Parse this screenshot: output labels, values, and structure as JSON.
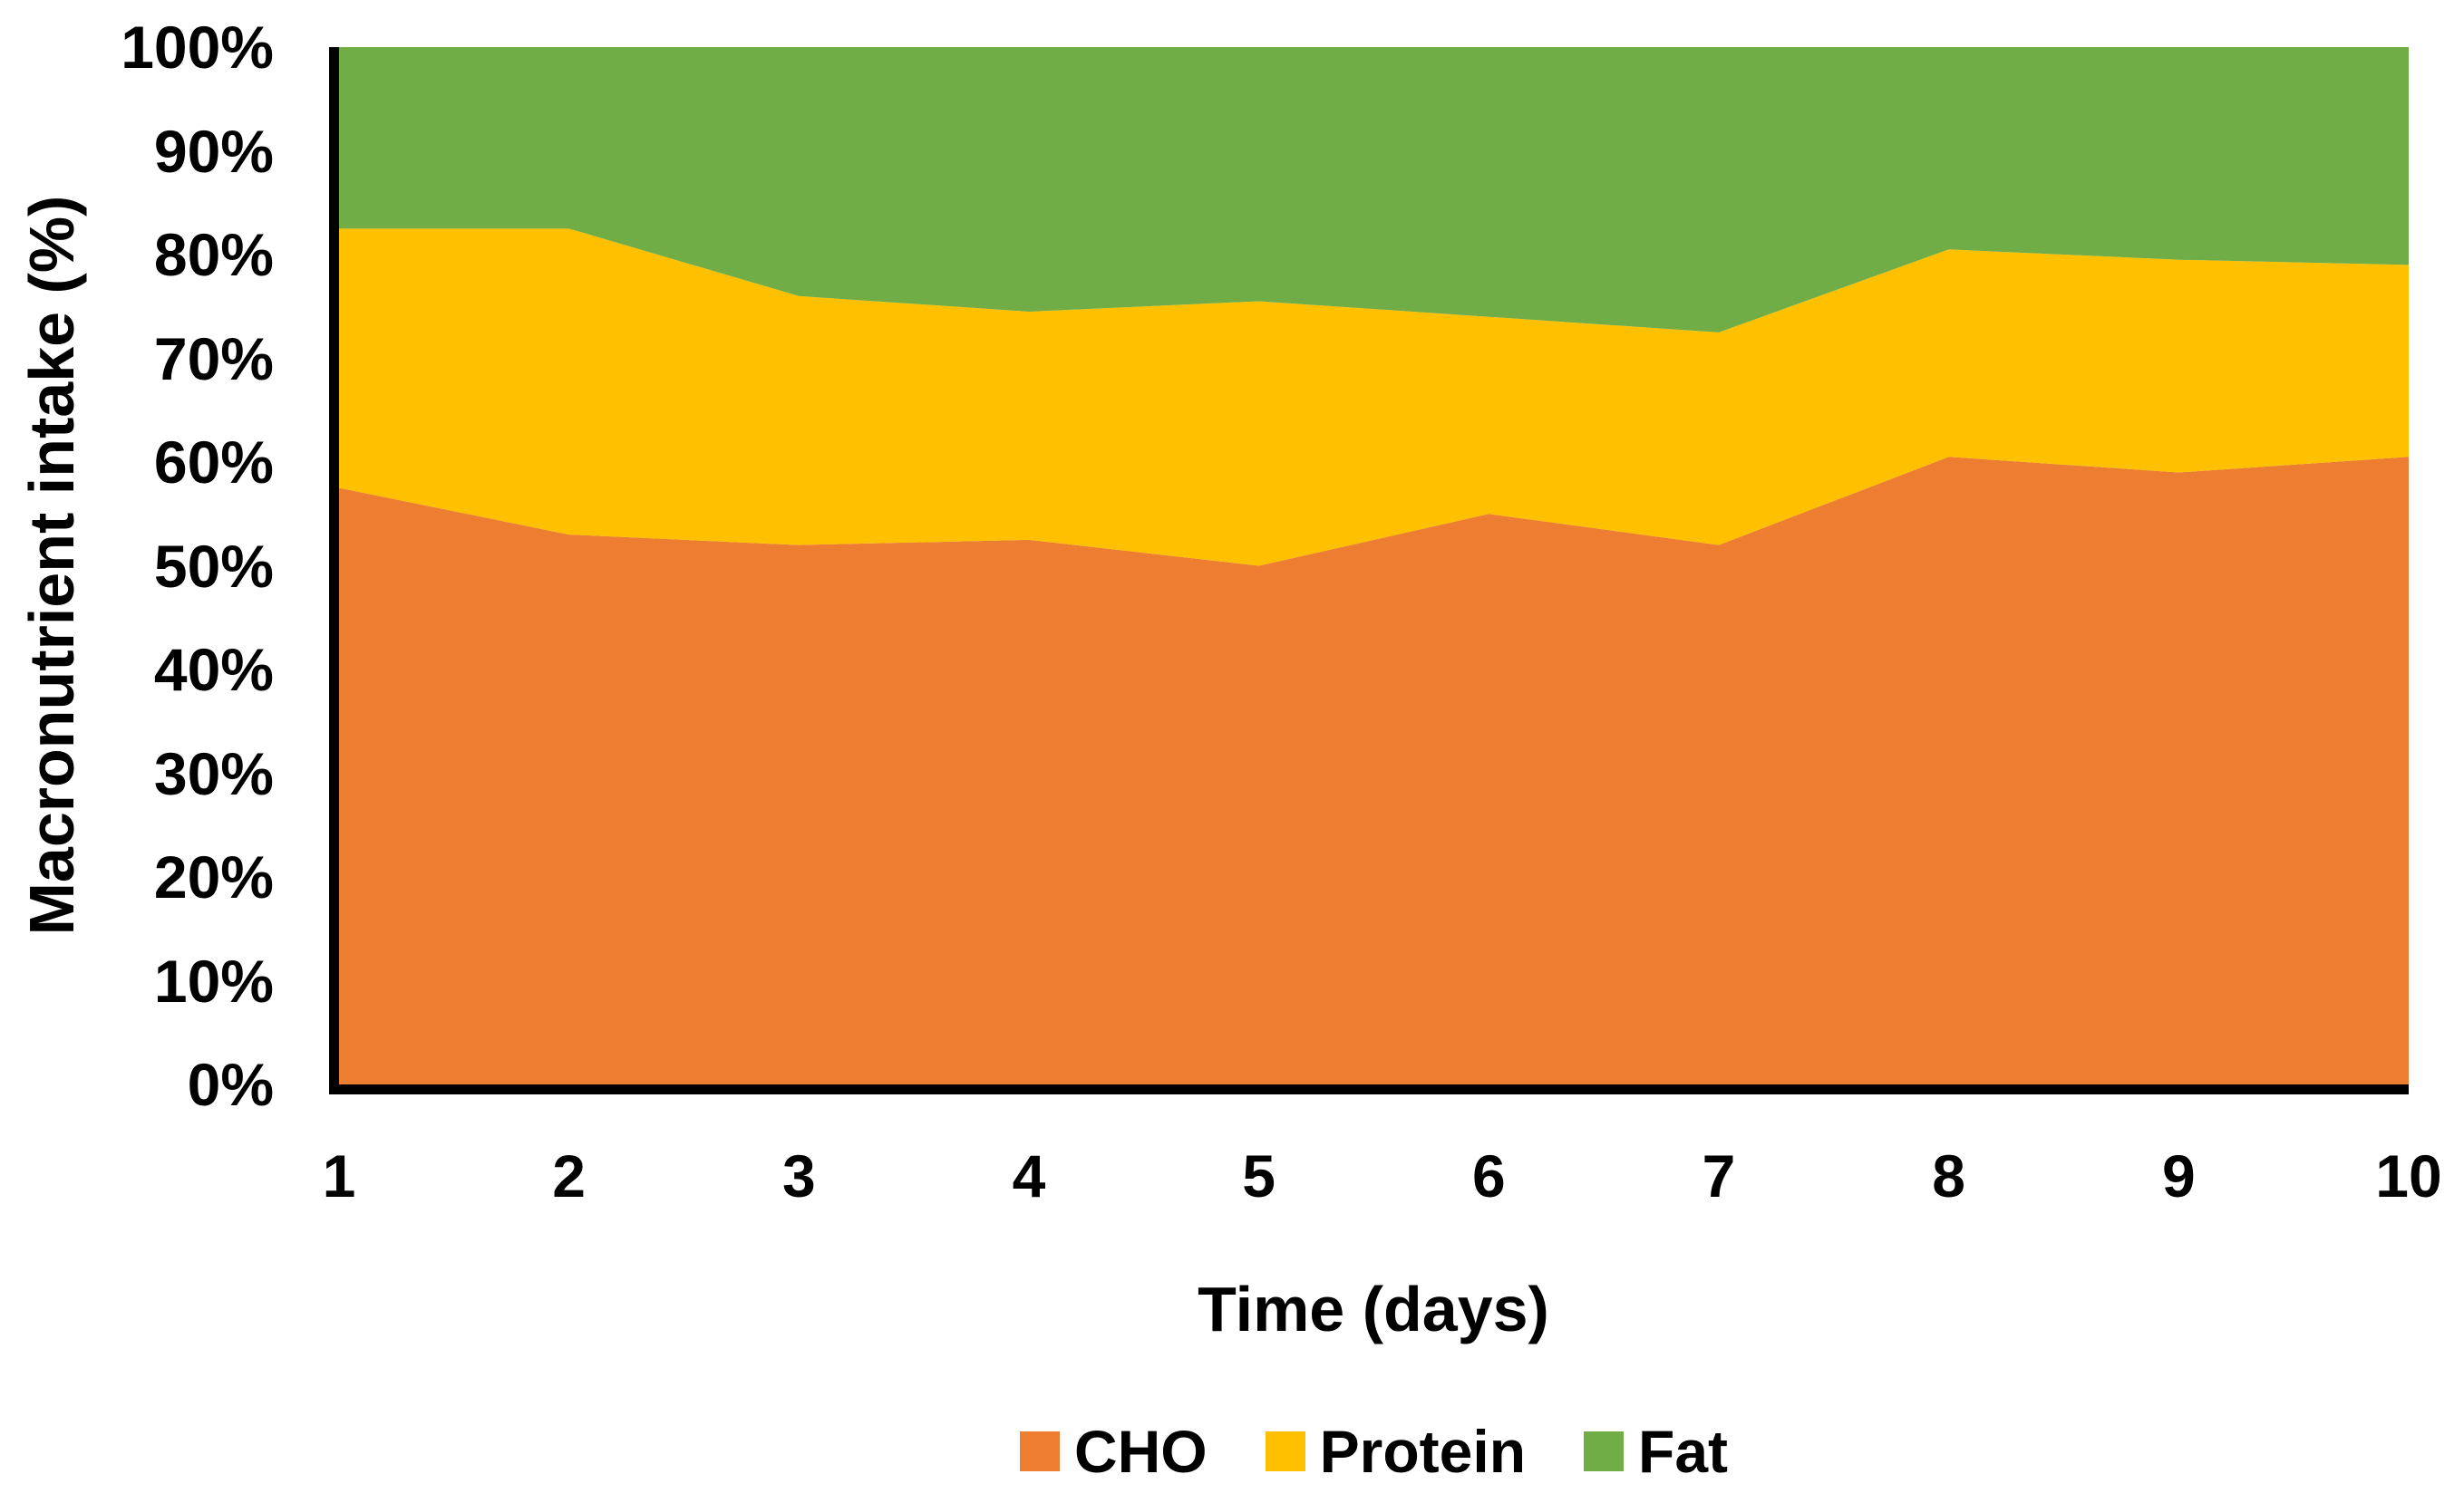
{
  "y_axis": {
    "title": "Macronutrient intake (%)",
    "ticks": [
      "0%",
      "10%",
      "20%",
      "30%",
      "40%",
      "50%",
      "60%",
      "70%",
      "80%",
      "90%",
      "100%"
    ]
  },
  "x_axis": {
    "title": "Time (days)",
    "ticks": [
      "1",
      "2",
      "3",
      "4",
      "5",
      "6",
      "7",
      "8",
      "9",
      "10"
    ]
  },
  "legend": {
    "items": [
      {
        "label": "CHO",
        "color": "#ED7D31"
      },
      {
        "label": "Protein",
        "color": "#FFC000"
      },
      {
        "label": "Fat",
        "color": "#70AD47"
      }
    ]
  },
  "colors": {
    "cho": "#ED7D31",
    "protein": "#FFC000",
    "fat": "#70AD47",
    "axis": "#000000"
  },
  "chart_data": {
    "type": "area",
    "stacked": true,
    "x": [
      1,
      2,
      3,
      4,
      5,
      6,
      7,
      8,
      9,
      10
    ],
    "categories": [
      "1",
      "2",
      "3",
      "4",
      "5",
      "6",
      "7",
      "8",
      "9",
      "10"
    ],
    "series": [
      {
        "name": "CHO",
        "color": "#ED7D31",
        "values": [
          57.5,
          53,
          52,
          52.5,
          50,
          55,
          52,
          60.5,
          59,
          60.5
        ]
      },
      {
        "name": "Protein",
        "color": "#FFC000",
        "values": [
          25,
          29.5,
          24,
          22,
          25.5,
          19,
          20.5,
          20,
          20.5,
          18.5
        ]
      },
      {
        "name": "Fat",
        "color": "#70AD47",
        "values": [
          17.5,
          17.5,
          24,
          25.5,
          24.5,
          26,
          27.5,
          19.5,
          20.5,
          21
        ]
      }
    ],
    "title": "",
    "xlabel": "Time (days)",
    "ylabel": "Macronutrient intake (%)",
    "ylim": [
      0,
      100
    ],
    "grid": false,
    "legend_position": "bottom"
  }
}
